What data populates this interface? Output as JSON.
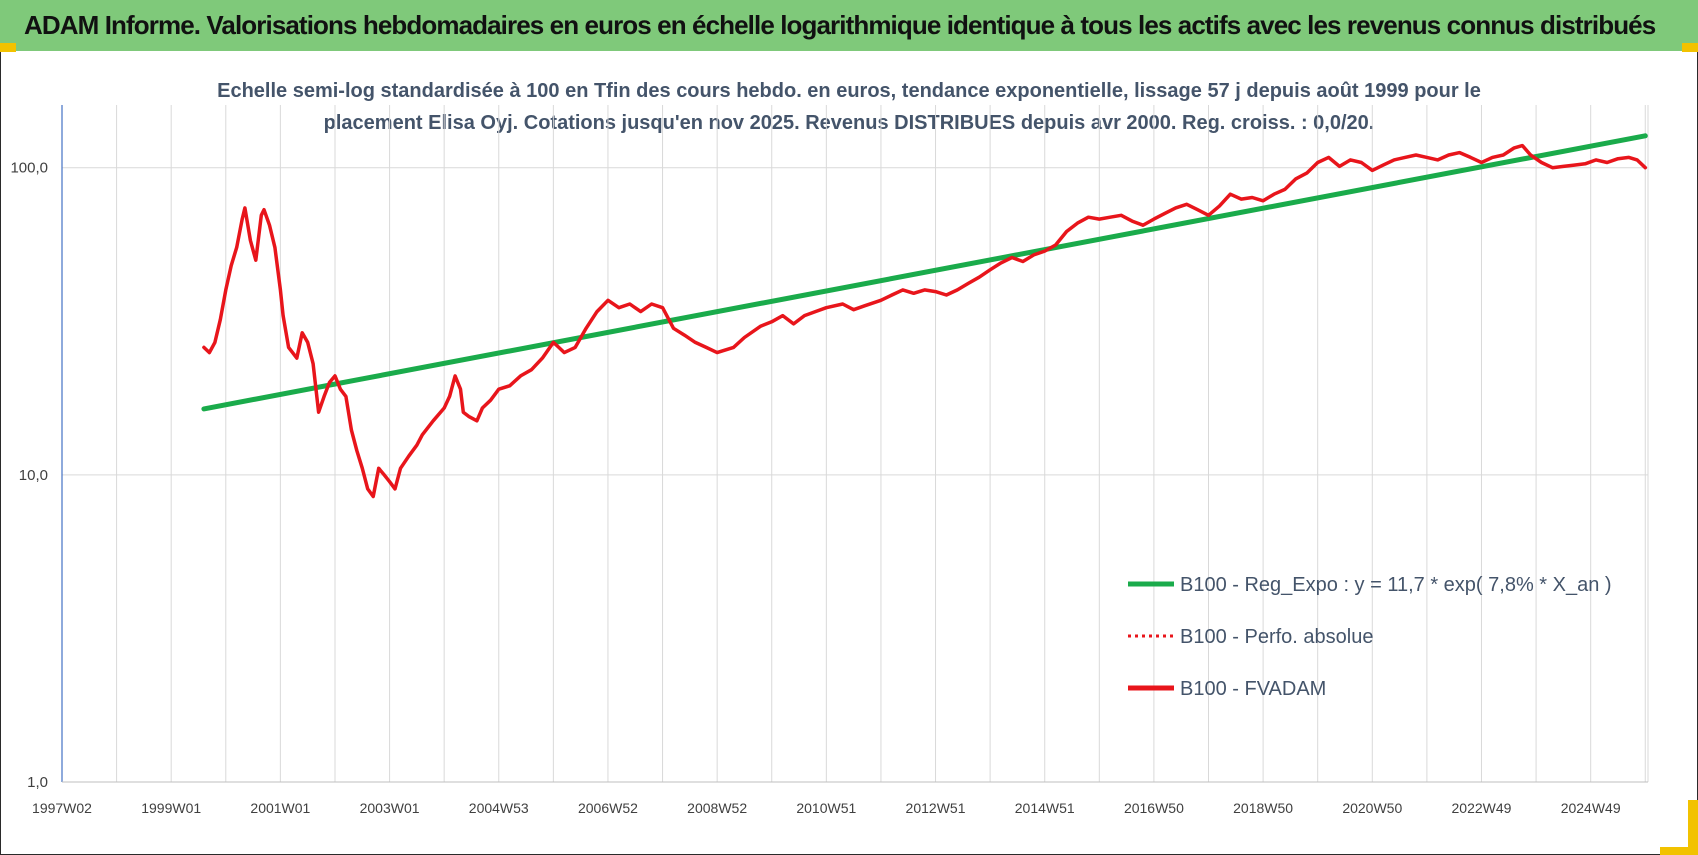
{
  "header": {
    "title": "ADAM Informe. Valorisations hebdomadaires en euros en échelle logarithmique identique à tous les actifs avec les revenus connus distribués"
  },
  "colors": {
    "banner": "#7fc97a",
    "accent_corner": "#f2c200",
    "regression": "#1aab4b",
    "fvadam": "#e8151b",
    "perfo": "#e8151b",
    "grid": "#d9d9d9",
    "axis": "#4472c4"
  },
  "chart_data": {
    "type": "line",
    "subtitle_lines": [
      "Echelle semi-log standardisée à 100 en Tfin des cours hebdo. en euros, tendance exponentielle, lissage 57 j depuis août 1999 pour le",
      "placement Elisa Oyj. Cotations jusqu'en nov 2025. Revenus DISTRIBUES depuis avr 2000. Reg. croiss. : 0,0/20."
    ],
    "y_scale": "log",
    "ylim": [
      1,
      160
    ],
    "y_ticks": [
      {
        "value": 1,
        "label": "1,0"
      },
      {
        "value": 10,
        "label": "10,0"
      },
      {
        "value": 100,
        "label": "100,0"
      }
    ],
    "x_range": [
      1997.0,
      2026.05
    ],
    "x_ticks": [
      {
        "value": 1997.0,
        "label": "1997W02"
      },
      {
        "value": 1999.0,
        "label": "1999W01"
      },
      {
        "value": 2001.0,
        "label": "2001W01"
      },
      {
        "value": 2003.0,
        "label": "2003W01"
      },
      {
        "value": 2005.0,
        "label": "2004W53"
      },
      {
        "value": 2007.0,
        "label": "2006W52"
      },
      {
        "value": 2009.0,
        "label": "2008W52"
      },
      {
        "value": 2011.0,
        "label": "2010W51"
      },
      {
        "value": 2013.0,
        "label": "2012W51"
      },
      {
        "value": 2015.0,
        "label": "2014W51"
      },
      {
        "value": 2017.0,
        "label": "2016W50"
      },
      {
        "value": 2019.0,
        "label": "2018W50"
      },
      {
        "value": 2021.0,
        "label": "2020W50"
      },
      {
        "value": 2023.0,
        "label": "2022W49"
      },
      {
        "value": 2025.0,
        "label": "2024W49"
      }
    ],
    "grid": true,
    "legend_position": "bottom-right",
    "series": [
      {
        "name": "B100 - Reg_Expo : y = 11,7 * exp( 7,8% *  X_an )",
        "style": "solid-thick",
        "color": "#1aab4b",
        "points": [
          [
            1999.6,
            16.4
          ],
          [
            2026.0,
            127.0
          ]
        ]
      },
      {
        "name": "B100 - Perfo. absolue",
        "style": "dotted",
        "color": "#e8151b",
        "points": []
      },
      {
        "name": "B100 - FVADAM",
        "style": "solid",
        "color": "#e8151b",
        "points": [
          [
            1999.6,
            26
          ],
          [
            1999.7,
            25
          ],
          [
            1999.8,
            27
          ],
          [
            1999.9,
            32
          ],
          [
            2000.0,
            40
          ],
          [
            2000.1,
            48
          ],
          [
            2000.2,
            55
          ],
          [
            2000.3,
            68
          ],
          [
            2000.35,
            74
          ],
          [
            2000.45,
            58
          ],
          [
            2000.55,
            50
          ],
          [
            2000.65,
            70
          ],
          [
            2000.7,
            73
          ],
          [
            2000.8,
            65
          ],
          [
            2000.9,
            55
          ],
          [
            2001.0,
            40
          ],
          [
            2001.05,
            33
          ],
          [
            2001.15,
            26
          ],
          [
            2001.3,
            24
          ],
          [
            2001.4,
            29
          ],
          [
            2001.5,
            27
          ],
          [
            2001.6,
            23
          ],
          [
            2001.7,
            16
          ],
          [
            2001.8,
            18
          ],
          [
            2001.9,
            20
          ],
          [
            2002.0,
            21
          ],
          [
            2002.1,
            19
          ],
          [
            2002.2,
            18
          ],
          [
            2002.3,
            14
          ],
          [
            2002.4,
            12
          ],
          [
            2002.5,
            10.5
          ],
          [
            2002.6,
            9.0
          ],
          [
            2002.7,
            8.5
          ],
          [
            2002.8,
            10.5
          ],
          [
            2002.9,
            10.0
          ],
          [
            2003.0,
            9.5
          ],
          [
            2003.1,
            9.0
          ],
          [
            2003.2,
            10.5
          ],
          [
            2003.35,
            11.5
          ],
          [
            2003.5,
            12.5
          ],
          [
            2003.6,
            13.5
          ],
          [
            2003.8,
            15.0
          ],
          [
            2004.0,
            16.5
          ],
          [
            2004.1,
            18.0
          ],
          [
            2004.2,
            21.0
          ],
          [
            2004.3,
            19.0
          ],
          [
            2004.35,
            16.0
          ],
          [
            2004.45,
            15.5
          ],
          [
            2004.6,
            15.0
          ],
          [
            2004.7,
            16.5
          ],
          [
            2004.85,
            17.5
          ],
          [
            2005.0,
            19.0
          ],
          [
            2005.2,
            19.5
          ],
          [
            2005.4,
            21.0
          ],
          [
            2005.6,
            22.0
          ],
          [
            2005.8,
            24.0
          ],
          [
            2006.0,
            27.0
          ],
          [
            2006.1,
            26.0
          ],
          [
            2006.2,
            25.0
          ],
          [
            2006.4,
            26.0
          ],
          [
            2006.6,
            30.0
          ],
          [
            2006.8,
            34.0
          ],
          [
            2007.0,
            37.0
          ],
          [
            2007.2,
            35.0
          ],
          [
            2007.4,
            36.0
          ],
          [
            2007.6,
            34.0
          ],
          [
            2007.8,
            36.0
          ],
          [
            2008.0,
            35.0
          ],
          [
            2008.2,
            30.0
          ],
          [
            2008.4,
            28.5
          ],
          [
            2008.6,
            27.0
          ],
          [
            2008.8,
            26.0
          ],
          [
            2009.0,
            25.0
          ],
          [
            2009.3,
            26.0
          ],
          [
            2009.5,
            28.0
          ],
          [
            2009.8,
            30.5
          ],
          [
            2010.0,
            31.5
          ],
          [
            2010.2,
            33.0
          ],
          [
            2010.4,
            31.0
          ],
          [
            2010.6,
            33.0
          ],
          [
            2010.8,
            34.0
          ],
          [
            2011.0,
            35.0
          ],
          [
            2011.3,
            36.0
          ],
          [
            2011.5,
            34.5
          ],
          [
            2011.7,
            35.5
          ],
          [
            2012.0,
            37.0
          ],
          [
            2012.2,
            38.5
          ],
          [
            2012.4,
            40.0
          ],
          [
            2012.6,
            39.0
          ],
          [
            2012.8,
            40.0
          ],
          [
            2013.0,
            39.5
          ],
          [
            2013.2,
            38.5
          ],
          [
            2013.4,
            40.0
          ],
          [
            2013.6,
            42.0
          ],
          [
            2013.8,
            44.0
          ],
          [
            2014.0,
            46.5
          ],
          [
            2014.2,
            49.0
          ],
          [
            2014.4,
            51.0
          ],
          [
            2014.6,
            49.5
          ],
          [
            2014.8,
            52.0
          ],
          [
            2015.0,
            53.5
          ],
          [
            2015.2,
            56.0
          ],
          [
            2015.4,
            62.0
          ],
          [
            2015.6,
            66.0
          ],
          [
            2015.8,
            69.0
          ],
          [
            2016.0,
            68.0
          ],
          [
            2016.2,
            69.0
          ],
          [
            2016.4,
            70.0
          ],
          [
            2016.6,
            67.0
          ],
          [
            2016.8,
            65.0
          ],
          [
            2017.0,
            68.0
          ],
          [
            2017.2,
            71.0
          ],
          [
            2017.4,
            74.0
          ],
          [
            2017.6,
            76.0
          ],
          [
            2017.8,
            73.0
          ],
          [
            2018.0,
            70.0
          ],
          [
            2018.2,
            75.0
          ],
          [
            2018.4,
            82.0
          ],
          [
            2018.6,
            79.0
          ],
          [
            2018.8,
            80.0
          ],
          [
            2019.0,
            78.0
          ],
          [
            2019.2,
            82.0
          ],
          [
            2019.4,
            85.0
          ],
          [
            2019.6,
            92.0
          ],
          [
            2019.8,
            96.0
          ],
          [
            2020.0,
            104.0
          ],
          [
            2020.2,
            108.0
          ],
          [
            2020.4,
            101.0
          ],
          [
            2020.6,
            106.0
          ],
          [
            2020.8,
            104.0
          ],
          [
            2021.0,
            98.0
          ],
          [
            2021.2,
            102.0
          ],
          [
            2021.4,
            106.0
          ],
          [
            2021.6,
            108.0
          ],
          [
            2021.8,
            110.0
          ],
          [
            2022.0,
            108.0
          ],
          [
            2022.2,
            106.0
          ],
          [
            2022.4,
            110.0
          ],
          [
            2022.6,
            112.0
          ],
          [
            2022.8,
            108.0
          ],
          [
            2023.0,
            104.0
          ],
          [
            2023.2,
            108.0
          ],
          [
            2023.4,
            110.0
          ],
          [
            2023.6,
            116.0
          ],
          [
            2023.75,
            118.0
          ],
          [
            2023.9,
            110.0
          ],
          [
            2024.1,
            104.0
          ],
          [
            2024.3,
            100.0
          ],
          [
            2024.5,
            101.0
          ],
          [
            2024.7,
            102.0
          ],
          [
            2024.9,
            103.0
          ],
          [
            2025.1,
            106.0
          ],
          [
            2025.3,
            104.0
          ],
          [
            2025.5,
            107.0
          ],
          [
            2025.7,
            108.0
          ],
          [
            2025.85,
            106.0
          ],
          [
            2026.0,
            100.0
          ]
        ]
      }
    ]
  }
}
